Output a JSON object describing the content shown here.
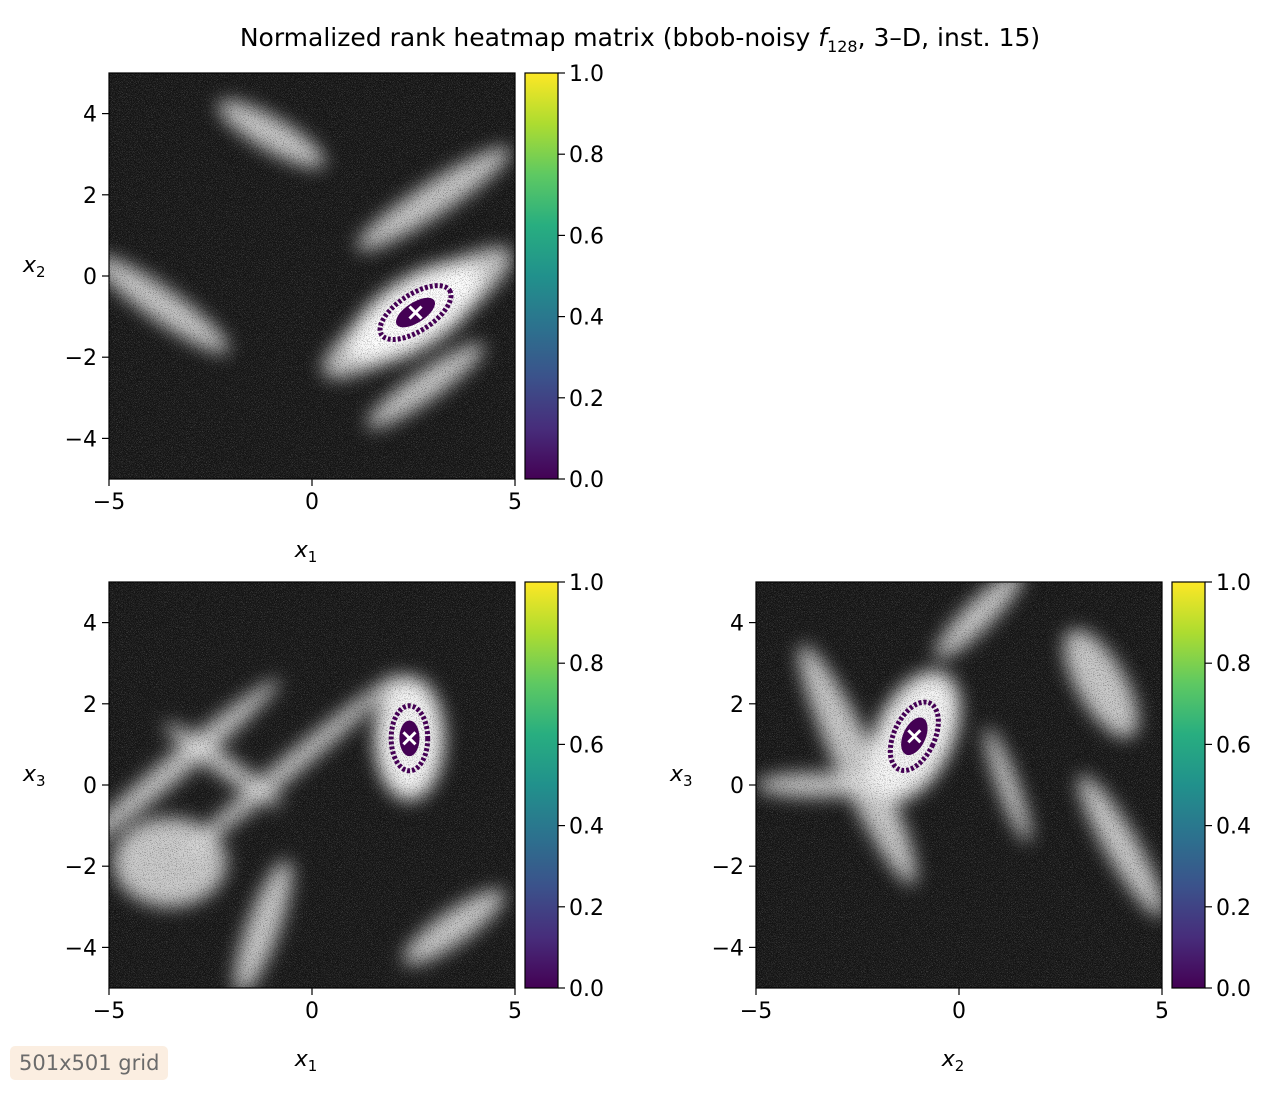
{
  "figure": {
    "title_pre": "Normalized rank heatmap matrix (bbob-noisy ",
    "title_f": "f",
    "title_sub": "128",
    "title_post": ", 3–D, inst. 15)"
  },
  "badge": {
    "text": "501x501 grid"
  },
  "chart_data": [
    {
      "type": "heatmap",
      "panel": "x1-x2",
      "xlabel": "x",
      "xlabel_sub": "1",
      "ylabel": "x",
      "ylabel_sub": "2",
      "xlim": [
        -5,
        5
      ],
      "ylim": [
        -5,
        5
      ],
      "xticks": [
        -5,
        0,
        5
      ],
      "xtick_labels": [
        "−5",
        "0",
        "5"
      ],
      "yticks": [
        -4,
        -2,
        0,
        2,
        4
      ],
      "ytick_labels": [
        "−4",
        "−2",
        "0",
        "2",
        "4"
      ],
      "grid": false,
      "colorbar": {
        "colormap": "viridis",
        "range": [
          0.0,
          1.0
        ],
        "ticks": [
          0.0,
          0.2,
          0.4,
          0.6,
          0.8,
          1.0
        ],
        "tick_labels": [
          "0.0",
          "0.2",
          "0.4",
          "0.6",
          "0.8",
          "1.0"
        ]
      },
      "background_texture": "noisy grayscale (black/white speckle)",
      "bright_bands": [
        {
          "cx": 2.6,
          "cy": -0.9,
          "len": 5.5,
          "wid": 1.4,
          "angle_deg": 33
        },
        {
          "cx": 3.0,
          "cy": 1.9,
          "len": 4.5,
          "wid": 0.8,
          "angle_deg": 33
        },
        {
          "cx": 2.8,
          "cy": -2.7,
          "len": 3.5,
          "wid": 0.7,
          "angle_deg": 35
        },
        {
          "cx": -3.7,
          "cy": -0.7,
          "len": 4.0,
          "wid": 0.8,
          "angle_deg": -35
        },
        {
          "cx": -1.0,
          "cy": 3.5,
          "len": 3.0,
          "wid": 0.8,
          "angle_deg": -30
        }
      ],
      "minimum_region": {
        "cx": 2.55,
        "cy": -0.9,
        "rx": 1.0,
        "ry": 0.45,
        "angle_deg": 33,
        "value": 0.0
      }
    },
    {
      "type": "heatmap",
      "panel": "x1-x3",
      "xlabel": "x",
      "xlabel_sub": "1",
      "ylabel": "x",
      "ylabel_sub": "3",
      "xlim": [
        -5,
        5
      ],
      "ylim": [
        -5,
        5
      ],
      "xticks": [
        -5,
        0,
        5
      ],
      "xtick_labels": [
        "−5",
        "0",
        "5"
      ],
      "yticks": [
        -4,
        -2,
        0,
        2,
        4
      ],
      "ytick_labels": [
        "−4",
        "−2",
        "0",
        "2",
        "4"
      ],
      "grid": false,
      "colorbar": {
        "colormap": "viridis",
        "range": [
          0.0,
          1.0
        ],
        "ticks": [
          0.0,
          0.2,
          0.4,
          0.6,
          0.8,
          1.0
        ],
        "tick_labels": [
          "0.0",
          "0.2",
          "0.4",
          "0.6",
          "0.8",
          "1.0"
        ]
      },
      "background_texture": "noisy grayscale (black/white speckle)",
      "bright_bands": [
        {
          "cx": -3.3,
          "cy": 0.5,
          "len": 6.5,
          "wid": 0.6,
          "angle_deg": 40
        },
        {
          "cx": -0.5,
          "cy": 0.5,
          "len": 7.0,
          "wid": 0.5,
          "angle_deg": 40
        },
        {
          "cx": -2.2,
          "cy": 0.5,
          "len": 3.5,
          "wid": 0.5,
          "angle_deg": -35
        },
        {
          "cx": -1.2,
          "cy": -3.5,
          "len": 3.5,
          "wid": 0.8,
          "angle_deg": 70
        },
        {
          "cx": 3.5,
          "cy": -3.5,
          "len": 3.0,
          "wid": 0.8,
          "angle_deg": 35
        },
        {
          "cx": -3.5,
          "cy": -1.9,
          "len": 2.8,
          "wid": 2.2,
          "angle_deg": 0
        }
      ],
      "minimum_region": {
        "cx": 2.4,
        "cy": 1.15,
        "rx": 0.45,
        "ry": 0.8,
        "angle_deg": 0,
        "value": 0.0
      }
    },
    {
      "type": "heatmap",
      "panel": "x2-x3",
      "xlabel": "x",
      "xlabel_sub": "2",
      "ylabel": "x",
      "ylabel_sub": "3",
      "xlim": [
        -5,
        5
      ],
      "ylim": [
        -5,
        5
      ],
      "xticks": [
        -5,
        0,
        5
      ],
      "xtick_labels": [
        "−5",
        "0",
        "5"
      ],
      "yticks": [
        -4,
        -2,
        0,
        2,
        4
      ],
      "ytick_labels": [
        "−4",
        "−2",
        "0",
        "2",
        "4"
      ],
      "grid": false,
      "colorbar": {
        "colormap": "viridis",
        "range": [
          0.0,
          1.0
        ],
        "ticks": [
          0.0,
          0.2,
          0.4,
          0.6,
          0.8,
          1.0
        ],
        "tick_labels": [
          "0.0",
          "0.2",
          "0.4",
          "0.6",
          "0.8",
          "1.0"
        ]
      },
      "background_texture": "noisy grayscale (black/white speckle)",
      "bright_bands": [
        {
          "cx": -2.5,
          "cy": 0.5,
          "len": 6.5,
          "wid": 1.0,
          "angle_deg": -65
        },
        {
          "cx": 1.2,
          "cy": 0.0,
          "len": 3.0,
          "wid": 0.5,
          "angle_deg": -70
        },
        {
          "cx": 0.5,
          "cy": 4.2,
          "len": 3.0,
          "wid": 0.7,
          "angle_deg": 45
        },
        {
          "cx": 4.0,
          "cy": -1.5,
          "len": 4.0,
          "wid": 0.8,
          "angle_deg": -60
        },
        {
          "cx": -3.5,
          "cy": 0.0,
          "len": 3.0,
          "wid": 0.6,
          "angle_deg": 0
        },
        {
          "cx": 3.5,
          "cy": 2.5,
          "len": 3.0,
          "wid": 1.2,
          "angle_deg": -60
        }
      ],
      "minimum_region": {
        "cx": -1.1,
        "cy": 1.2,
        "rx": 0.5,
        "ry": 0.9,
        "angle_deg": -25,
        "value": 0.0
      }
    }
  ]
}
